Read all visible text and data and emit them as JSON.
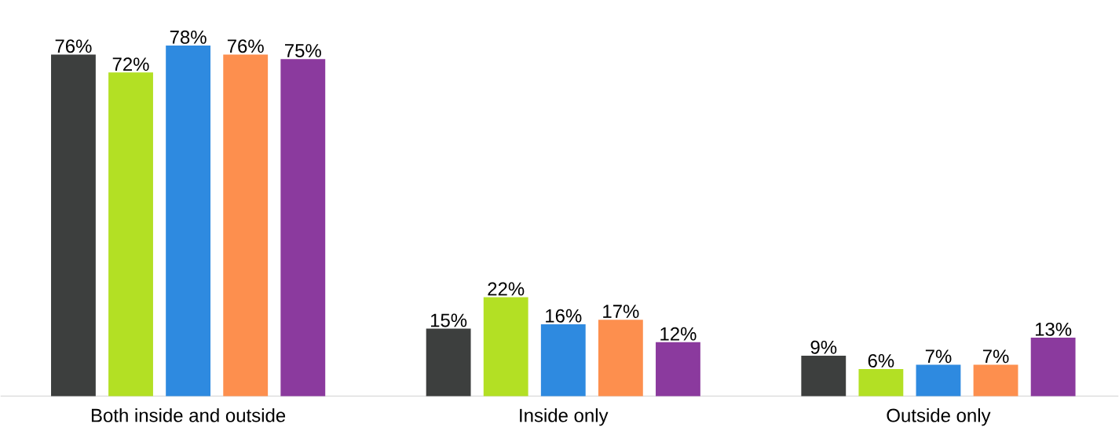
{
  "chart_data": {
    "type": "bar",
    "categories": [
      "Both inside and outside",
      "Inside only",
      "Outside only"
    ],
    "series": [
      {
        "color": "#3d3f3e",
        "values": [
          76,
          15,
          9
        ],
        "value_labels": [
          "76%",
          "15%",
          "9%"
        ]
      },
      {
        "color": "#b3e024",
        "values": [
          72,
          22,
          6
        ],
        "value_labels": [
          "72%",
          "22%",
          "6%"
        ]
      },
      {
        "color": "#2e8ae0",
        "values": [
          78,
          16,
          7
        ],
        "value_labels": [
          "78%",
          "16%",
          "7%"
        ]
      },
      {
        "color": "#fd8f4e",
        "values": [
          76,
          17,
          7
        ],
        "value_labels": [
          "76%",
          "17%",
          "7%"
        ]
      },
      {
        "color": "#8b3a9e",
        "values": [
          75,
          12,
          13
        ],
        "value_labels": [
          "75%",
          "12%",
          "13%"
        ]
      }
    ]
  }
}
